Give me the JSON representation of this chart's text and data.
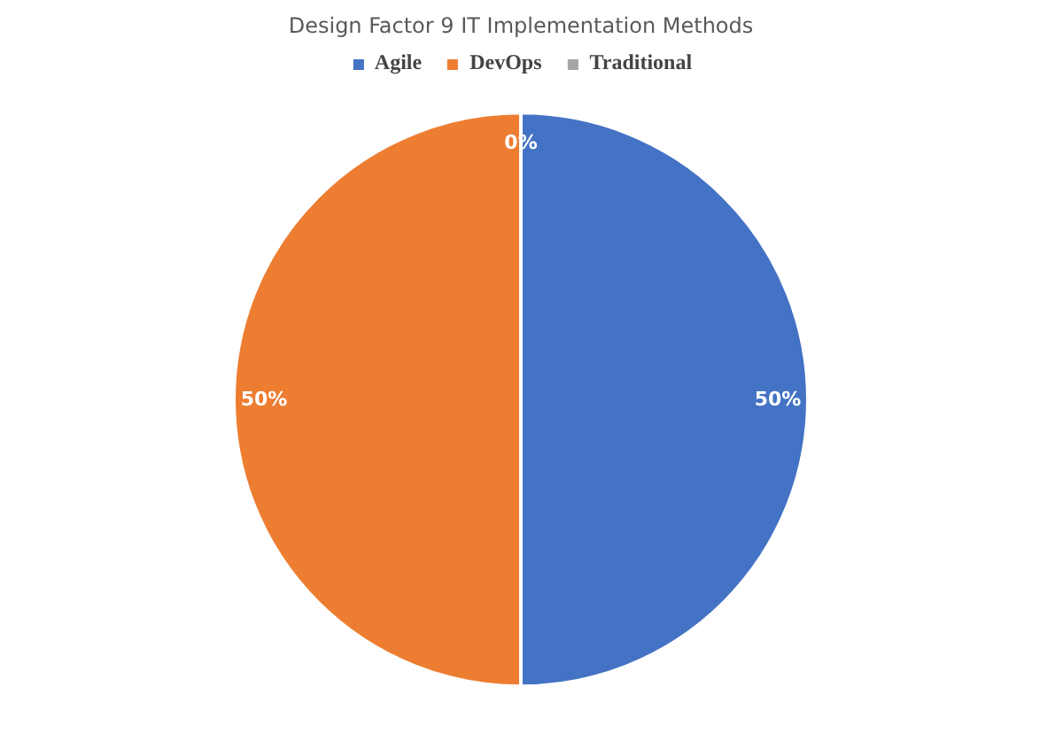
{
  "chart_data": {
    "type": "pie",
    "title": "Design Factor 9 IT Implementation Methods",
    "categories": [
      "Agile",
      "DevOps",
      "Traditional"
    ],
    "values": [
      50,
      50,
      0
    ],
    "colors": [
      "#4472c4",
      "#ed7d31",
      "#a5a5a5"
    ],
    "value_labels": [
      "50%",
      "50%",
      "0%"
    ],
    "legend": "top"
  }
}
